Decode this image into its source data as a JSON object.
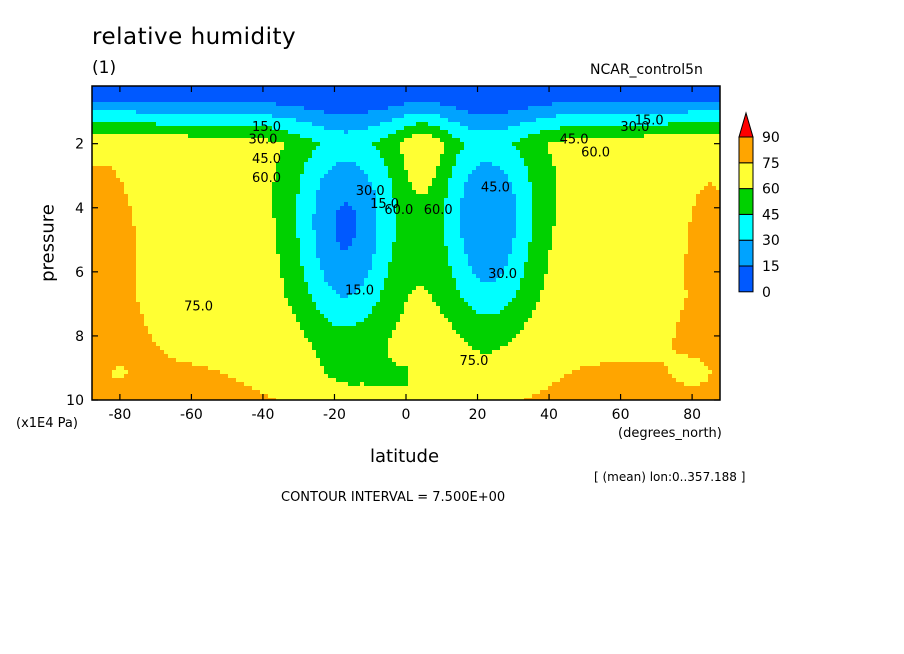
{
  "chart_data": {
    "type": "heatmap",
    "title": "relative humidity",
    "subtitle": "(1)",
    "dataset": "NCAR_control5n",
    "xlabel": "latitude",
    "x_units": "(degrees_north)",
    "ylabel": "pressure",
    "y_units": "(x1E4 Pa)",
    "xlim": [
      -87.8,
      87.8
    ],
    "ylim": [
      10,
      0.2
    ],
    "x_ticks": [
      "-80",
      "-60",
      "-40",
      "-20",
      "0",
      "20",
      "40",
      "60",
      "80"
    ],
    "x_tick_values": [
      -80,
      -60,
      -40,
      -20,
      0,
      20,
      40,
      60,
      80
    ],
    "y_ticks": [
      "2",
      "4",
      "6",
      "8",
      "10"
    ],
    "y_tick_values": [
      2,
      4,
      6,
      8,
      10
    ],
    "contour_interval_text": "CONTOUR INTERVAL = 7.500E+00",
    "averaging_note": "[ (mean) lon:0..357.188 ]",
    "colorbar": {
      "levels": [
        "0",
        "15",
        "30",
        "45",
        "60",
        "75",
        "90"
      ],
      "colors": [
        "#0059ff",
        "#00a3ff",
        "#00ffff",
        "#00d100",
        "#ffff33",
        "#ffa500",
        "#ff0000"
      ]
    },
    "contour_labels": [
      {
        "text": "15.0",
        "lat": -39,
        "p": 1.6
      },
      {
        "text": "30.0",
        "lat": -40,
        "p": 2.0
      },
      {
        "text": "45.0",
        "lat": -39,
        "p": 2.6
      },
      {
        "text": "60.0",
        "lat": -39,
        "p": 3.2
      },
      {
        "text": "30.0",
        "lat": -10,
        "p": 3.6
      },
      {
        "text": "15.0",
        "lat": -6,
        "p": 4.0
      },
      {
        "text": "60.0",
        "lat": -2,
        "p": 4.2
      },
      {
        "text": "60.0",
        "lat": 9,
        "p": 4.2
      },
      {
        "text": "45.0",
        "lat": 25,
        "p": 3.5
      },
      {
        "text": "30.0",
        "lat": 27,
        "p": 6.2
      },
      {
        "text": "15.0",
        "lat": -13,
        "p": 6.7
      },
      {
        "text": "75.0",
        "lat": -58,
        "p": 7.2
      },
      {
        "text": "75.0",
        "lat": 19,
        "p": 8.9
      },
      {
        "text": "45.0",
        "lat": 47,
        "p": 2.0
      },
      {
        "text": "60.0",
        "lat": 53,
        "p": 2.4
      },
      {
        "text": "30.0",
        "lat": 64,
        "p": 1.6
      },
      {
        "text": "15.0",
        "lat": 68,
        "p": 1.4
      }
    ]
  }
}
